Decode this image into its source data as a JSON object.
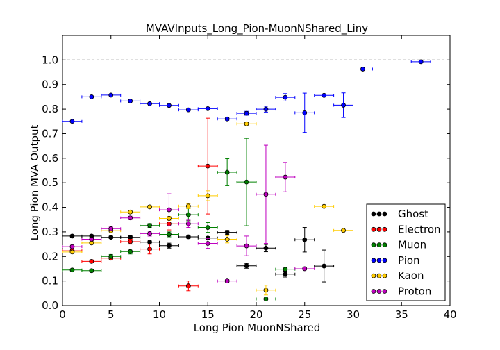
{
  "chart_data": {
    "type": "scatter",
    "title": "MVAVInputs_Long_Pion-MuonNShared_Liny",
    "xlabel": "Long Pion MuonNShared",
    "ylabel": "Long Pion MVA Output",
    "xlim": [
      0,
      40
    ],
    "ylim": [
      0,
      1.1
    ],
    "xticks": [
      "0",
      "5",
      "10",
      "15",
      "20",
      "25",
      "30",
      "35",
      "40"
    ],
    "yticks": [
      "0.0",
      "0.1",
      "0.2",
      "0.3",
      "0.4",
      "0.5",
      "0.6",
      "0.7",
      "0.8",
      "0.9",
      "1.0"
    ],
    "reference_line": 1.0,
    "x_bin_halfwidth": 1,
    "legend_position": "lower-right",
    "series": [
      {
        "name": "Ghost",
        "color": "#000000",
        "points": [
          {
            "x": 1,
            "y": 0.283,
            "err": 0.005
          },
          {
            "x": 3,
            "y": 0.283,
            "err": 0.005
          },
          {
            "x": 5,
            "y": 0.278,
            "err": 0.005
          },
          {
            "x": 7,
            "y": 0.278,
            "err": 0.006
          },
          {
            "x": 9,
            "y": 0.258,
            "err": 0.008
          },
          {
            "x": 11,
            "y": 0.244,
            "err": 0.01
          },
          {
            "x": 13,
            "y": 0.28,
            "err": 0.006
          },
          {
            "x": 15,
            "y": 0.275,
            "err": 0.006
          },
          {
            "x": 17,
            "y": 0.298,
            "err": 0.008
          },
          {
            "x": 19,
            "y": 0.162,
            "err": 0.01
          },
          {
            "x": 21,
            "y": 0.234,
            "err": 0.015
          },
          {
            "x": 23,
            "y": 0.128,
            "err": 0.012
          },
          {
            "x": 25,
            "y": 0.268,
            "err": 0.05
          },
          {
            "x": 27,
            "y": 0.161,
            "err": 0.065
          }
        ]
      },
      {
        "name": "Electron",
        "color": "#ff0000",
        "points": [
          {
            "x": 1,
            "y": 0.223,
            "err": 0.006
          },
          {
            "x": 3,
            "y": 0.18,
            "err": 0.006
          },
          {
            "x": 5,
            "y": 0.193,
            "err": 0.007
          },
          {
            "x": 7,
            "y": 0.26,
            "err": 0.01
          },
          {
            "x": 9,
            "y": 0.23,
            "err": 0.02
          },
          {
            "x": 11,
            "y": 0.333,
            "err": 0.025
          },
          {
            "x": 13,
            "y": 0.08,
            "err": 0.02
          },
          {
            "x": 15,
            "y": 0.568,
            "err": 0.195
          }
        ]
      },
      {
        "name": "Muon",
        "color": "#008000",
        "points": [
          {
            "x": 1,
            "y": 0.145,
            "err": 0.004
          },
          {
            "x": 3,
            "y": 0.142,
            "err": 0.005
          },
          {
            "x": 5,
            "y": 0.2,
            "err": 0.008
          },
          {
            "x": 7,
            "y": 0.22,
            "err": 0.01
          },
          {
            "x": 9,
            "y": 0.326,
            "err": 0.008
          },
          {
            "x": 11,
            "y": 0.29,
            "err": 0.01
          },
          {
            "x": 13,
            "y": 0.37,
            "err": 0.025
          },
          {
            "x": 15,
            "y": 0.318,
            "err": 0.02
          },
          {
            "x": 17,
            "y": 0.543,
            "err": 0.055
          },
          {
            "x": 19,
            "y": 0.503,
            "err": 0.178
          },
          {
            "x": 21,
            "y": 0.027,
            "err": 0.004
          },
          {
            "x": 23,
            "y": 0.148,
            "err": 0.004
          }
        ]
      },
      {
        "name": "Pion",
        "color": "#0000ff",
        "points": [
          {
            "x": 1,
            "y": 0.75,
            "err": 0.002
          },
          {
            "x": 3,
            "y": 0.85,
            "err": 0.002
          },
          {
            "x": 5,
            "y": 0.857,
            "err": 0.002
          },
          {
            "x": 7,
            "y": 0.833,
            "err": 0.002
          },
          {
            "x": 9,
            "y": 0.822,
            "err": 0.003
          },
          {
            "x": 11,
            "y": 0.815,
            "err": 0.003
          },
          {
            "x": 13,
            "y": 0.797,
            "err": 0.004
          },
          {
            "x": 15,
            "y": 0.802,
            "err": 0.005
          },
          {
            "x": 17,
            "y": 0.76,
            "err": 0.006
          },
          {
            "x": 19,
            "y": 0.783,
            "err": 0.008
          },
          {
            "x": 21,
            "y": 0.8,
            "err": 0.012
          },
          {
            "x": 23,
            "y": 0.848,
            "err": 0.015
          },
          {
            "x": 25,
            "y": 0.785,
            "err": 0.08
          },
          {
            "x": 27,
            "y": 0.856,
            "err": 0.005
          },
          {
            "x": 29,
            "y": 0.816,
            "err": 0.05
          },
          {
            "x": 31,
            "y": 0.963,
            "err": 0.004
          },
          {
            "x": 37,
            "y": 0.993,
            "err": 0.003
          }
        ]
      },
      {
        "name": "Kaon",
        "color": "#ffcc00",
        "points": [
          {
            "x": 1,
            "y": 0.218,
            "err": 0.005
          },
          {
            "x": 3,
            "y": 0.255,
            "err": 0.005
          },
          {
            "x": 5,
            "y": 0.305,
            "err": 0.006
          },
          {
            "x": 7,
            "y": 0.381,
            "err": 0.006
          },
          {
            "x": 9,
            "y": 0.402,
            "err": 0.006
          },
          {
            "x": 11,
            "y": 0.355,
            "err": 0.008
          },
          {
            "x": 13,
            "y": 0.405,
            "err": 0.01
          },
          {
            "x": 15,
            "y": 0.447,
            "err": 0.02
          },
          {
            "x": 17,
            "y": 0.27,
            "err": 0.015
          },
          {
            "x": 19,
            "y": 0.74,
            "err": 0.005
          },
          {
            "x": 21,
            "y": 0.063,
            "err": 0.02
          },
          {
            "x": 27,
            "y": 0.404,
            "err": 0.004
          },
          {
            "x": 29,
            "y": 0.306,
            "err": 0.004
          }
        ]
      },
      {
        "name": "Proton",
        "color": "#bf00bf",
        "points": [
          {
            "x": 1,
            "y": 0.24,
            "err": 0.006
          },
          {
            "x": 3,
            "y": 0.27,
            "err": 0.006
          },
          {
            "x": 5,
            "y": 0.313,
            "err": 0.007
          },
          {
            "x": 7,
            "y": 0.357,
            "err": 0.007
          },
          {
            "x": 9,
            "y": 0.293,
            "err": 0.01
          },
          {
            "x": 11,
            "y": 0.39,
            "err": 0.065
          },
          {
            "x": 13,
            "y": 0.333,
            "err": 0.015
          },
          {
            "x": 15,
            "y": 0.253,
            "err": 0.02
          },
          {
            "x": 17,
            "y": 0.1,
            "err": 0.006
          },
          {
            "x": 19,
            "y": 0.243,
            "err": 0.04
          },
          {
            "x": 21,
            "y": 0.453,
            "err": 0.2
          },
          {
            "x": 23,
            "y": 0.523,
            "err": 0.06
          },
          {
            "x": 25,
            "y": 0.15,
            "err": 0.004
          }
        ]
      }
    ]
  }
}
